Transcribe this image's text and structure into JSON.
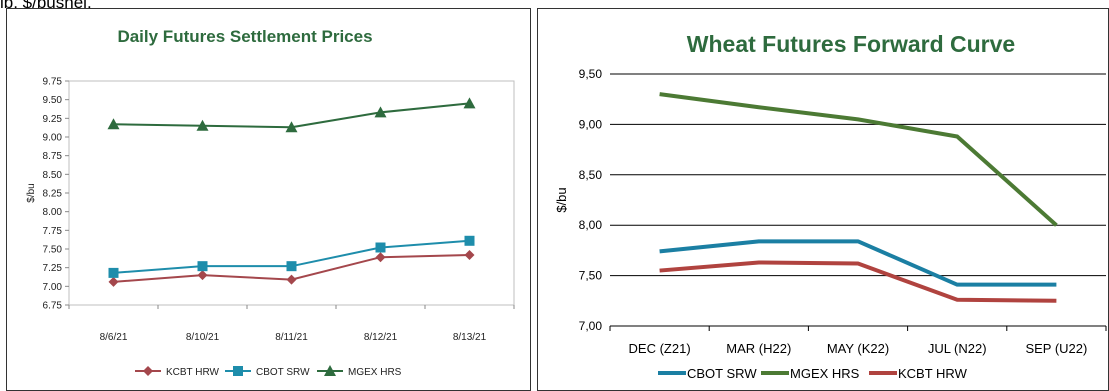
{
  "top_text": "lb, $/bushel.",
  "chart_data": [
    {
      "type": "line",
      "title": "Daily Futures Settlement Prices",
      "xlabel": "",
      "ylabel": "$/bu",
      "categories": [
        "8/6/21",
        "8/10/21",
        "8/11/21",
        "8/12/21",
        "8/13/21"
      ],
      "y_ticks": [
        "6.75",
        "7.00",
        "7.25",
        "7.50",
        "7.75",
        "8.00",
        "8.25",
        "8.50",
        "8.75",
        "9.00",
        "9.25",
        "9.50",
        "9.75"
      ],
      "ylim": [
        6.75,
        9.75
      ],
      "grid": false,
      "legend_position": "bottom",
      "series": [
        {
          "name": "KCBT HRW",
          "color": "#a4474c",
          "marker": "diamond",
          "values": [
            7.06,
            7.15,
            7.09,
            7.39,
            7.42
          ]
        },
        {
          "name": "CBOT SRW",
          "color": "#1e8dab",
          "marker": "square",
          "values": [
            7.18,
            7.27,
            7.27,
            7.52,
            7.61
          ]
        },
        {
          "name": "MGEX HRS",
          "color": "#2e6b3e",
          "marker": "triangle",
          "values": [
            9.17,
            9.15,
            9.13,
            9.33,
            9.45
          ]
        }
      ]
    },
    {
      "type": "line",
      "title": "Wheat Futures Forward Curve",
      "xlabel": "",
      "ylabel": "$/bu",
      "categories": [
        "DEC (Z21)",
        "MAR (H22)",
        "MAY (K22)",
        "JUL (N22)",
        "SEP (U22)"
      ],
      "y_ticks": [
        "7,00",
        "7,50",
        "8,00",
        "8,50",
        "9,00",
        "9,50"
      ],
      "ylim": [
        7.0,
        9.5
      ],
      "grid": true,
      "legend_position": "bottom",
      "series": [
        {
          "name": "CBOT SRW",
          "color": "#1b7fa3",
          "values": [
            7.74,
            7.84,
            7.84,
            7.41,
            7.41
          ]
        },
        {
          "name": "MGEX HRS",
          "color": "#4c7a34",
          "values": [
            9.3,
            9.17,
            9.05,
            8.88,
            8.0
          ]
        },
        {
          "name": "KCBT HRW",
          "color": "#b0433f",
          "values": [
            7.55,
            7.63,
            7.62,
            7.26,
            7.25
          ]
        }
      ]
    }
  ]
}
